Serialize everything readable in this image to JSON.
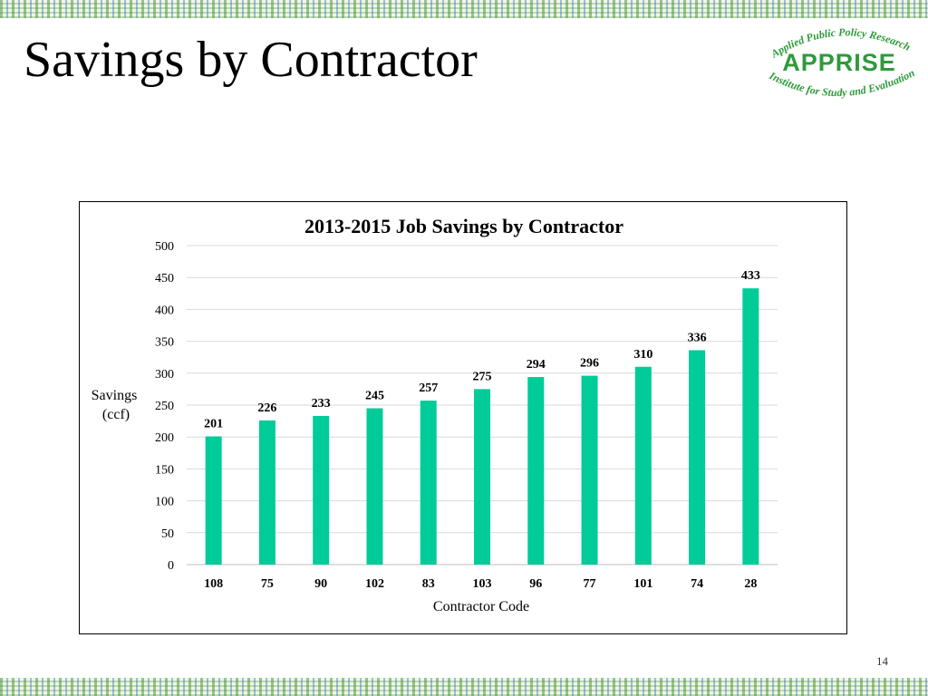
{
  "slide": {
    "title": "Savings by Contractor",
    "page_number": "14"
  },
  "logo": {
    "top_text": "Applied Public Policy Research",
    "name": "APPRISE",
    "bottom_text": "Institute for Study and Evaluation",
    "color": "#2e9a3c"
  },
  "chart_data": {
    "type": "bar",
    "title": "2013-2015 Job Savings by Contractor",
    "xlabel": "Contractor Code",
    "ylabel": [
      "Savings",
      "(ccf)"
    ],
    "categories": [
      "108",
      "75",
      "90",
      "102",
      "83",
      "103",
      "96",
      "77",
      "101",
      "74",
      "28"
    ],
    "values": [
      201,
      226,
      233,
      245,
      257,
      275,
      294,
      296,
      310,
      336,
      433
    ],
    "data_labels": true,
    "ylim": [
      0,
      500
    ],
    "yticks": [
      0,
      50,
      100,
      150,
      200,
      250,
      300,
      350,
      400,
      450,
      500
    ],
    "grid": true,
    "legend": "none",
    "bar_color": "#00cc99"
  }
}
